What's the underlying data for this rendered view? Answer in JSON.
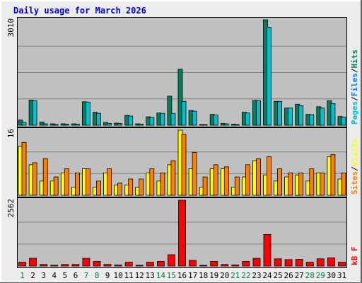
{
  "title": "Daily usage for March 2026",
  "colors": {
    "title": "#0000cc",
    "frame_bg": "#ececec",
    "plot_bg": "#c0c0c0",
    "grid": "#808080",
    "hits": "#008060",
    "files": "#0080ff",
    "pages": "#00c0d0",
    "visits": "#ffff00",
    "sites": "#ff8000",
    "kbytes": "#ff0000",
    "day_weekday": "#000000",
    "day_weekend": "#008040"
  },
  "chart_data": [
    {
      "type": "bar",
      "panel": "hits-files-pages",
      "ymax_label": "3010",
      "ylim": [
        0,
        3010
      ],
      "legend": [
        "Pages",
        "/",
        "Files",
        "/",
        "Hits"
      ],
      "categories": [
        "1",
        "2",
        "3",
        "4",
        "5",
        "6",
        "7",
        "8",
        "9",
        "10",
        "11",
        "12",
        "13",
        "14",
        "15",
        "16",
        "17",
        "18",
        "19",
        "20",
        "21",
        "22",
        "23",
        "24",
        "25",
        "26",
        "27",
        "28",
        "29",
        "30",
        "31"
      ],
      "series": [
        {
          "name": "Hits",
          "color_key": "hits",
          "values": [
            150,
            720,
            90,
            40,
            40,
            40,
            670,
            370,
            80,
            60,
            280,
            40,
            240,
            350,
            830,
            1600,
            420,
            20,
            310,
            50,
            30,
            370,
            710,
            3010,
            680,
            490,
            600,
            310,
            530,
            700,
            250
          ]
        },
        {
          "name": "Pages",
          "color_key": "pages",
          "values": [
            80,
            700,
            40,
            20,
            30,
            30,
            660,
            340,
            50,
            50,
            260,
            30,
            220,
            340,
            340,
            680,
            400,
            10,
            290,
            40,
            20,
            350,
            700,
            2800,
            680,
            490,
            560,
            300,
            490,
            620,
            230
          ]
        }
      ]
    },
    {
      "type": "bar",
      "panel": "visits-sites",
      "ymax_label": "16",
      "ylim": [
        0,
        16
      ],
      "legend": [
        "Sites",
        "/",
        "Visits"
      ],
      "categories": [
        "1",
        "2",
        "3",
        "4",
        "5",
        "6",
        "7",
        "8",
        "9",
        "10",
        "11",
        "12",
        "13",
        "14",
        "15",
        "16",
        "17",
        "18",
        "19",
        "20",
        "21",
        "22",
        "23",
        "24",
        "25",
        "26",
        "27",
        "28",
        "29",
        "30",
        "31"
      ],
      "series": [
        {
          "name": "Visits",
          "color_key": "visits",
          "values": [
            12,
            7.5,
            3.5,
            3.5,
            5.5,
            2,
            6.5,
            2,
            5.5,
            2.5,
            2.5,
            2,
            5.5,
            3.5,
            7.5,
            16,
            6.5,
            2,
            6.5,
            6.5,
            2,
            4.5,
            8.5,
            5,
            3.5,
            4.5,
            5,
            3.5,
            5.5,
            9.5,
            4
          ]
        },
        {
          "name": "Sites",
          "color_key": "sites",
          "values": [
            13,
            8,
            9,
            4.5,
            6.5,
            5.5,
            6.5,
            3.5,
            6.5,
            3,
            4,
            4,
            6.5,
            5.5,
            8.5,
            15,
            10.5,
            4.5,
            7.5,
            7,
            4.5,
            7.5,
            9,
            9.5,
            6.5,
            5.5,
            5.5,
            6.5,
            5.5,
            10,
            5.5
          ]
        }
      ]
    },
    {
      "type": "bar",
      "panel": "kbytes",
      "ymax_label": "2562",
      "ylim": [
        0,
        2562
      ],
      "legend": [
        "kB F"
      ],
      "categories": [
        "1",
        "2",
        "3",
        "4",
        "5",
        "6",
        "7",
        "8",
        "9",
        "10",
        "11",
        "12",
        "13",
        "14",
        "15",
        "16",
        "17",
        "18",
        "19",
        "20",
        "21",
        "22",
        "23",
        "24",
        "25",
        "26",
        "27",
        "28",
        "29",
        "30",
        "31"
      ],
      "series": [
        {
          "name": "kB F",
          "color_key": "kbytes",
          "values": [
            150,
            300,
            60,
            30,
            60,
            60,
            300,
            180,
            60,
            40,
            150,
            30,
            150,
            180,
            440,
            2562,
            220,
            20,
            180,
            60,
            40,
            180,
            300,
            1230,
            280,
            250,
            260,
            150,
            280,
            320,
            150
          ]
        }
      ]
    }
  ],
  "days": [
    "1",
    "2",
    "3",
    "4",
    "5",
    "6",
    "7",
    "8",
    "9",
    "10",
    "11",
    "12",
    "13",
    "14",
    "15",
    "16",
    "17",
    "18",
    "19",
    "20",
    "21",
    "22",
    "23",
    "24",
    "25",
    "26",
    "27",
    "28",
    "29",
    "30",
    "31"
  ],
  "weekend_days": [
    "1",
    "7",
    "8",
    "14",
    "15",
    "21",
    "22",
    "28",
    "29"
  ]
}
